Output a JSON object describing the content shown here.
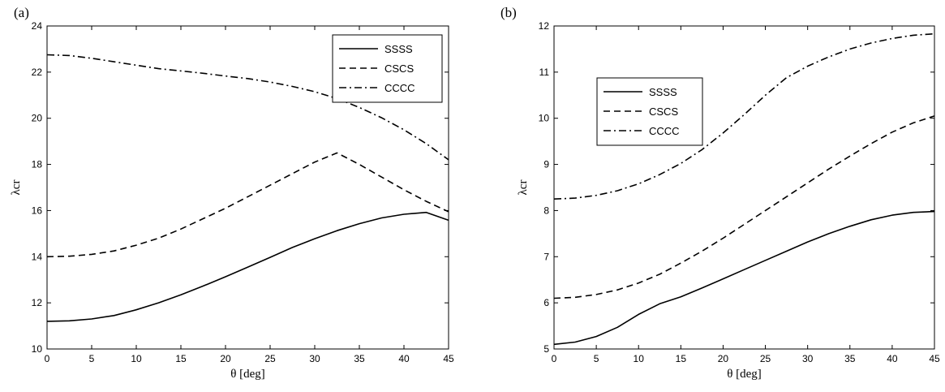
{
  "chart_data": [
    {
      "panel": "(a)",
      "type": "line",
      "xlabel": "θ [deg]",
      "ylabel": "λcr",
      "xlim": [
        0,
        45
      ],
      "ylim": [
        10,
        24
      ],
      "xticks": [
        0,
        5,
        10,
        15,
        20,
        25,
        30,
        35,
        40,
        45
      ],
      "yticks": [
        10,
        12,
        14,
        16,
        18,
        20,
        22,
        24
      ],
      "grid": false,
      "legend_position": "top-right",
      "series": [
        {
          "name": "SSSS",
          "style": "solid",
          "x": [
            0,
            2.5,
            5,
            7.5,
            10,
            12.5,
            15,
            17.5,
            20,
            22.5,
            25,
            27.5,
            30,
            32.5,
            35,
            37.5,
            40,
            42.5,
            45
          ],
          "y": [
            11.2,
            11.22,
            11.3,
            11.45,
            11.7,
            12.0,
            12.35,
            12.73,
            13.13,
            13.55,
            13.97,
            14.4,
            14.78,
            15.13,
            15.43,
            15.68,
            15.84,
            15.92,
            15.58
          ]
        },
        {
          "name": "CSCS",
          "style": "dashed",
          "x": [
            0,
            2.5,
            5,
            7.5,
            10,
            12.5,
            15,
            17.5,
            20,
            22.5,
            25,
            27.5,
            30,
            32.5,
            35,
            37.5,
            40,
            42.5,
            45
          ],
          "y": [
            14.0,
            14.02,
            14.1,
            14.25,
            14.5,
            14.8,
            15.2,
            15.65,
            16.1,
            16.6,
            17.1,
            17.6,
            18.1,
            18.5,
            18.0,
            17.45,
            16.9,
            16.4,
            15.95
          ]
        },
        {
          "name": "CCCC",
          "style": "dashdot",
          "x": [
            0,
            2.5,
            5,
            7.5,
            10,
            12.5,
            15,
            17.5,
            20,
            22.5,
            25,
            27.5,
            30,
            32.5,
            35,
            37.5,
            40,
            42.5,
            45
          ],
          "y": [
            22.75,
            22.72,
            22.6,
            22.45,
            22.3,
            22.15,
            22.05,
            21.95,
            21.83,
            21.72,
            21.57,
            21.38,
            21.15,
            20.85,
            20.47,
            20.02,
            19.5,
            18.9,
            18.2
          ]
        }
      ]
    },
    {
      "panel": "(b)",
      "type": "line",
      "xlabel": "θ [deg]",
      "ylabel": "λcr",
      "xlim": [
        0,
        45
      ],
      "ylim": [
        5,
        12
      ],
      "xticks": [
        0,
        5,
        10,
        15,
        20,
        25,
        30,
        35,
        40,
        45
      ],
      "yticks": [
        5,
        6,
        7,
        8,
        9,
        10,
        11,
        12
      ],
      "grid": false,
      "legend_position": "top-left",
      "series": [
        {
          "name": "SSSS",
          "style": "solid",
          "x": [
            0,
            2.5,
            5,
            7.5,
            10,
            12.5,
            15,
            17.5,
            20,
            22.5,
            25,
            27.5,
            30,
            32.5,
            35,
            37.5,
            40,
            42.5,
            45
          ],
          "y": [
            5.1,
            5.15,
            5.27,
            5.47,
            5.75,
            5.98,
            6.13,
            6.32,
            6.52,
            6.72,
            6.92,
            7.12,
            7.32,
            7.5,
            7.66,
            7.8,
            7.9,
            7.96,
            7.98
          ]
        },
        {
          "name": "CSCS",
          "style": "dashed",
          "x": [
            0,
            2.5,
            5,
            7.5,
            10,
            12.5,
            15,
            17.5,
            20,
            22.5,
            25,
            27.5,
            30,
            32.5,
            35,
            37.5,
            40,
            42.5,
            45
          ],
          "y": [
            6.1,
            6.12,
            6.18,
            6.28,
            6.43,
            6.62,
            6.86,
            7.12,
            7.4,
            7.7,
            8.0,
            8.3,
            8.6,
            8.9,
            9.18,
            9.45,
            9.7,
            9.9,
            10.05
          ]
        },
        {
          "name": "CCCC",
          "style": "dashdot",
          "x": [
            0,
            2.5,
            5,
            7.5,
            10,
            12.5,
            15,
            17.5,
            20,
            22.5,
            25,
            27.5,
            30,
            32.5,
            35,
            37.5,
            40,
            42.5,
            45
          ],
          "y": [
            8.25,
            8.27,
            8.33,
            8.43,
            8.58,
            8.78,
            9.02,
            9.32,
            9.68,
            10.08,
            10.5,
            10.88,
            11.13,
            11.33,
            11.5,
            11.63,
            11.73,
            11.8,
            11.83
          ]
        }
      ]
    }
  ]
}
